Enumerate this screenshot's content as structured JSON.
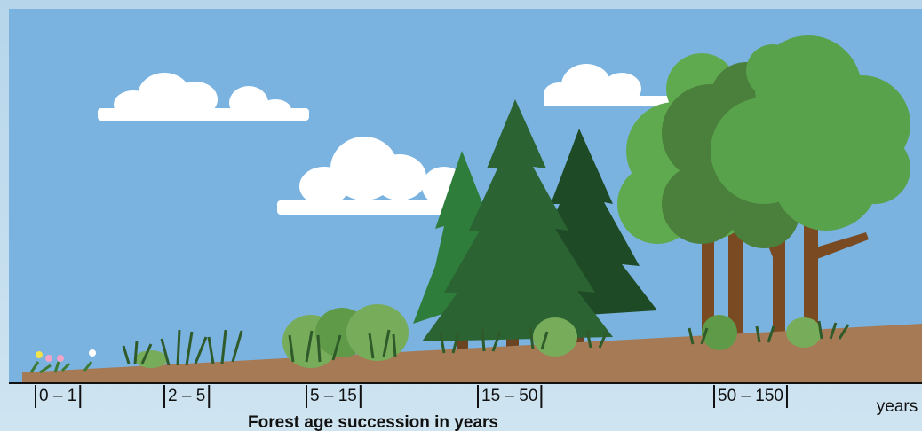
{
  "stages": [
    {
      "label": "0 – 1"
    },
    {
      "label": "2 – 5"
    },
    {
      "label": "5 – 15"
    },
    {
      "label": "15 – 50"
    },
    {
      "label": "50 – 150"
    }
  ],
  "unit": "years",
  "caption": "Forest age succession in years"
}
